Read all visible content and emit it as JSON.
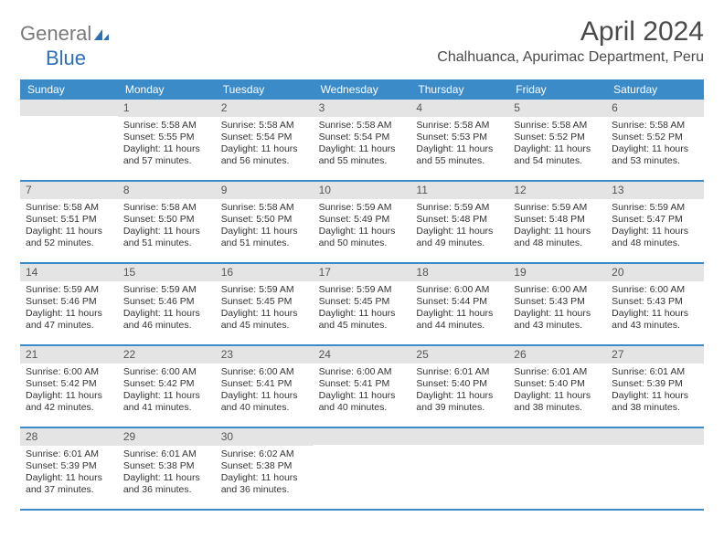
{
  "logo": {
    "text_general": "General",
    "text_blue": "Blue"
  },
  "title": "April 2024",
  "location": "Chalhuanca, Apurimac Department, Peru",
  "colors": {
    "header_bg": "#3b8bc9",
    "header_text": "#ffffff",
    "daynum_bg": "#e4e4e4",
    "daynum_text": "#555555",
    "body_text": "#333333",
    "row_border": "#3b8bc9"
  },
  "weekdays": [
    "Sunday",
    "Monday",
    "Tuesday",
    "Wednesday",
    "Thursday",
    "Friday",
    "Saturday"
  ],
  "weeks": [
    [
      {
        "empty": true
      },
      {
        "num": "1",
        "sunrise": "Sunrise: 5:58 AM",
        "sunset": "Sunset: 5:55 PM",
        "daylight": "Daylight: 11 hours and 57 minutes."
      },
      {
        "num": "2",
        "sunrise": "Sunrise: 5:58 AM",
        "sunset": "Sunset: 5:54 PM",
        "daylight": "Daylight: 11 hours and 56 minutes."
      },
      {
        "num": "3",
        "sunrise": "Sunrise: 5:58 AM",
        "sunset": "Sunset: 5:54 PM",
        "daylight": "Daylight: 11 hours and 55 minutes."
      },
      {
        "num": "4",
        "sunrise": "Sunrise: 5:58 AM",
        "sunset": "Sunset: 5:53 PM",
        "daylight": "Daylight: 11 hours and 55 minutes."
      },
      {
        "num": "5",
        "sunrise": "Sunrise: 5:58 AM",
        "sunset": "Sunset: 5:52 PM",
        "daylight": "Daylight: 11 hours and 54 minutes."
      },
      {
        "num": "6",
        "sunrise": "Sunrise: 5:58 AM",
        "sunset": "Sunset: 5:52 PM",
        "daylight": "Daylight: 11 hours and 53 minutes."
      }
    ],
    [
      {
        "num": "7",
        "sunrise": "Sunrise: 5:58 AM",
        "sunset": "Sunset: 5:51 PM",
        "daylight": "Daylight: 11 hours and 52 minutes."
      },
      {
        "num": "8",
        "sunrise": "Sunrise: 5:58 AM",
        "sunset": "Sunset: 5:50 PM",
        "daylight": "Daylight: 11 hours and 51 minutes."
      },
      {
        "num": "9",
        "sunrise": "Sunrise: 5:58 AM",
        "sunset": "Sunset: 5:50 PM",
        "daylight": "Daylight: 11 hours and 51 minutes."
      },
      {
        "num": "10",
        "sunrise": "Sunrise: 5:59 AM",
        "sunset": "Sunset: 5:49 PM",
        "daylight": "Daylight: 11 hours and 50 minutes."
      },
      {
        "num": "11",
        "sunrise": "Sunrise: 5:59 AM",
        "sunset": "Sunset: 5:48 PM",
        "daylight": "Daylight: 11 hours and 49 minutes."
      },
      {
        "num": "12",
        "sunrise": "Sunrise: 5:59 AM",
        "sunset": "Sunset: 5:48 PM",
        "daylight": "Daylight: 11 hours and 48 minutes."
      },
      {
        "num": "13",
        "sunrise": "Sunrise: 5:59 AM",
        "sunset": "Sunset: 5:47 PM",
        "daylight": "Daylight: 11 hours and 48 minutes."
      }
    ],
    [
      {
        "num": "14",
        "sunrise": "Sunrise: 5:59 AM",
        "sunset": "Sunset: 5:46 PM",
        "daylight": "Daylight: 11 hours and 47 minutes."
      },
      {
        "num": "15",
        "sunrise": "Sunrise: 5:59 AM",
        "sunset": "Sunset: 5:46 PM",
        "daylight": "Daylight: 11 hours and 46 minutes."
      },
      {
        "num": "16",
        "sunrise": "Sunrise: 5:59 AM",
        "sunset": "Sunset: 5:45 PM",
        "daylight": "Daylight: 11 hours and 45 minutes."
      },
      {
        "num": "17",
        "sunrise": "Sunrise: 5:59 AM",
        "sunset": "Sunset: 5:45 PM",
        "daylight": "Daylight: 11 hours and 45 minutes."
      },
      {
        "num": "18",
        "sunrise": "Sunrise: 6:00 AM",
        "sunset": "Sunset: 5:44 PM",
        "daylight": "Daylight: 11 hours and 44 minutes."
      },
      {
        "num": "19",
        "sunrise": "Sunrise: 6:00 AM",
        "sunset": "Sunset: 5:43 PM",
        "daylight": "Daylight: 11 hours and 43 minutes."
      },
      {
        "num": "20",
        "sunrise": "Sunrise: 6:00 AM",
        "sunset": "Sunset: 5:43 PM",
        "daylight": "Daylight: 11 hours and 43 minutes."
      }
    ],
    [
      {
        "num": "21",
        "sunrise": "Sunrise: 6:00 AM",
        "sunset": "Sunset: 5:42 PM",
        "daylight": "Daylight: 11 hours and 42 minutes."
      },
      {
        "num": "22",
        "sunrise": "Sunrise: 6:00 AM",
        "sunset": "Sunset: 5:42 PM",
        "daylight": "Daylight: 11 hours and 41 minutes."
      },
      {
        "num": "23",
        "sunrise": "Sunrise: 6:00 AM",
        "sunset": "Sunset: 5:41 PM",
        "daylight": "Daylight: 11 hours and 40 minutes."
      },
      {
        "num": "24",
        "sunrise": "Sunrise: 6:00 AM",
        "sunset": "Sunset: 5:41 PM",
        "daylight": "Daylight: 11 hours and 40 minutes."
      },
      {
        "num": "25",
        "sunrise": "Sunrise: 6:01 AM",
        "sunset": "Sunset: 5:40 PM",
        "daylight": "Daylight: 11 hours and 39 minutes."
      },
      {
        "num": "26",
        "sunrise": "Sunrise: 6:01 AM",
        "sunset": "Sunset: 5:40 PM",
        "daylight": "Daylight: 11 hours and 38 minutes."
      },
      {
        "num": "27",
        "sunrise": "Sunrise: 6:01 AM",
        "sunset": "Sunset: 5:39 PM",
        "daylight": "Daylight: 11 hours and 38 minutes."
      }
    ],
    [
      {
        "num": "28",
        "sunrise": "Sunrise: 6:01 AM",
        "sunset": "Sunset: 5:39 PM",
        "daylight": "Daylight: 11 hours and 37 minutes."
      },
      {
        "num": "29",
        "sunrise": "Sunrise: 6:01 AM",
        "sunset": "Sunset: 5:38 PM",
        "daylight": "Daylight: 11 hours and 36 minutes."
      },
      {
        "num": "30",
        "sunrise": "Sunrise: 6:02 AM",
        "sunset": "Sunset: 5:38 PM",
        "daylight": "Daylight: 11 hours and 36 minutes."
      },
      {
        "empty": true
      },
      {
        "empty": true
      },
      {
        "empty": true
      },
      {
        "empty": true
      }
    ]
  ]
}
